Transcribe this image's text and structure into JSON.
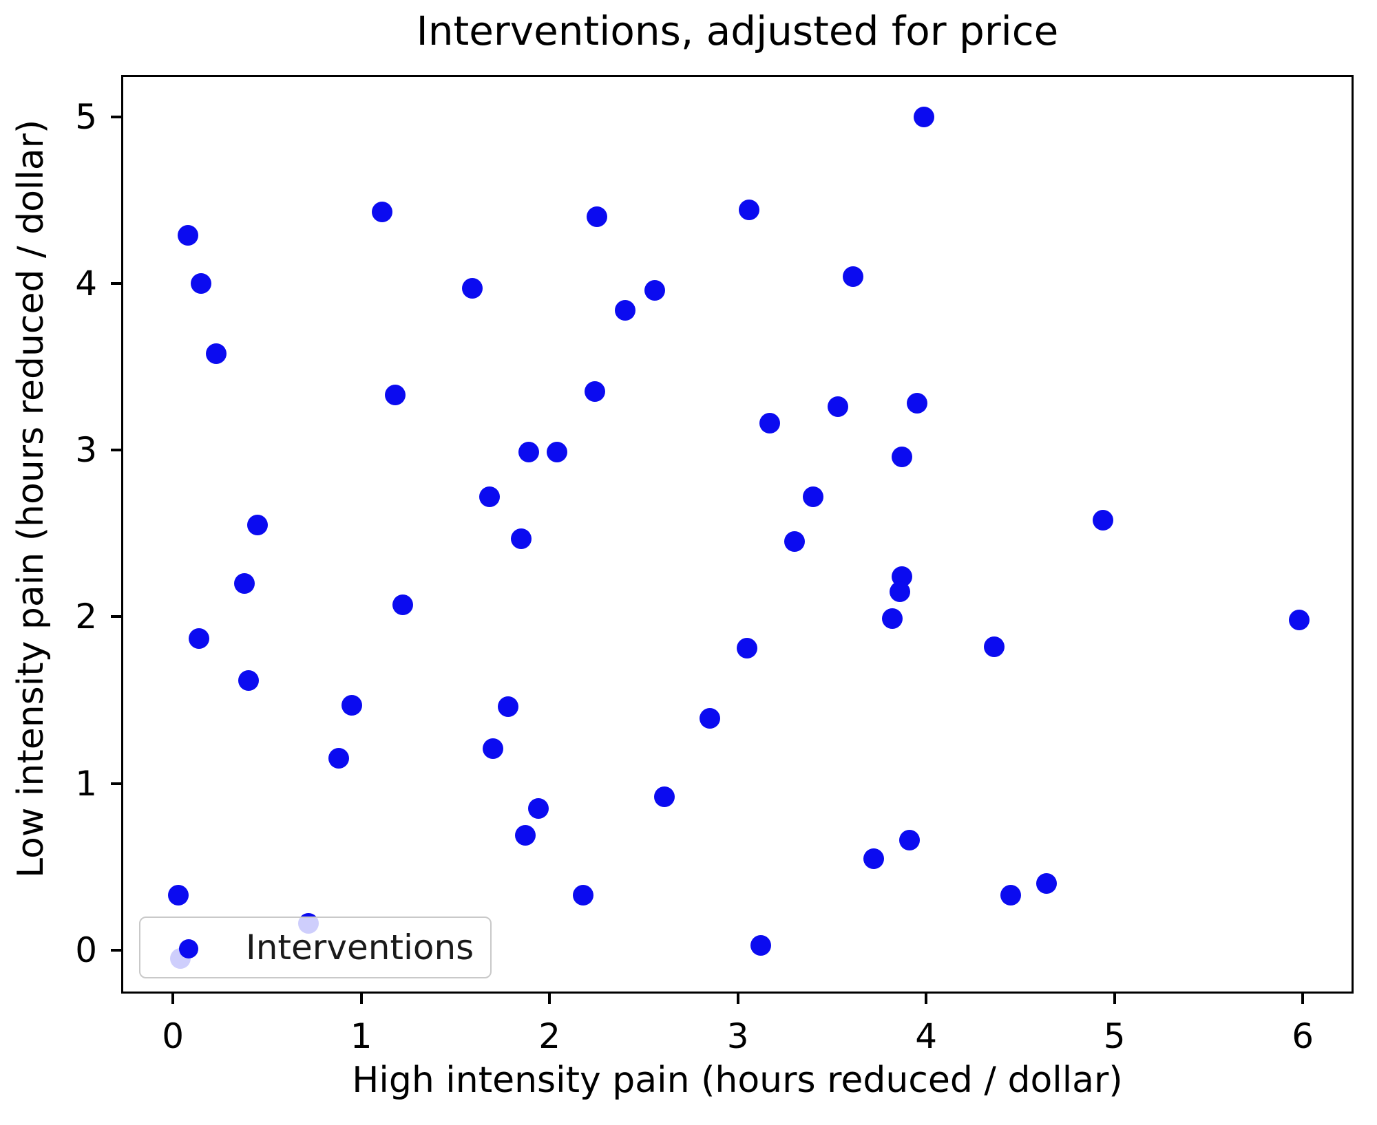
{
  "chart_data": {
    "type": "scatter",
    "title": "Interventions, adjusted for price",
    "xlabel": "High intensity pain (hours reduced / dollar)",
    "ylabel": "Low intensity pain (hours reduced / dollar)",
    "legend_label": "Interventions",
    "legend_position": "lower left",
    "marker_color": "#0b0bf0",
    "marker_diameter_px": 30,
    "grid": false,
    "xlim": [
      -0.275,
      6.27
    ],
    "ylim": [
      -0.26,
      5.25
    ],
    "x_ticks": [
      0,
      1,
      2,
      3,
      4,
      5,
      6
    ],
    "y_ticks": [
      0,
      1,
      2,
      3,
      4,
      5
    ],
    "points": [
      [
        0.08,
        4.29
      ],
      [
        0.15,
        4.0
      ],
      [
        0.23,
        3.58
      ],
      [
        1.11,
        4.43
      ],
      [
        1.18,
        3.33
      ],
      [
        1.59,
        3.97
      ],
      [
        2.25,
        4.4
      ],
      [
        3.06,
        4.44
      ],
      [
        2.56,
        3.96
      ],
      [
        2.4,
        3.84
      ],
      [
        2.24,
        3.35
      ],
      [
        3.99,
        5.0
      ],
      [
        3.61,
        4.04
      ],
      [
        3.17,
        3.16
      ],
      [
        3.53,
        3.26
      ],
      [
        3.95,
        3.28
      ],
      [
        3.87,
        2.96
      ],
      [
        1.89,
        2.99
      ],
      [
        2.04,
        2.99
      ],
      [
        1.68,
        2.72
      ],
      [
        1.85,
        2.47
      ],
      [
        3.4,
        2.72
      ],
      [
        3.3,
        2.45
      ],
      [
        4.94,
        2.58
      ],
      [
        0.45,
        2.55
      ],
      [
        0.38,
        2.2
      ],
      [
        0.14,
        1.87
      ],
      [
        0.4,
        1.62
      ],
      [
        1.22,
        2.07
      ],
      [
        3.87,
        2.24
      ],
      [
        3.86,
        2.15
      ],
      [
        3.82,
        1.99
      ],
      [
        5.98,
        1.98
      ],
      [
        4.36,
        1.82
      ],
      [
        3.05,
        1.81
      ],
      [
        0.95,
        1.47
      ],
      [
        0.88,
        1.15
      ],
      [
        1.78,
        1.46
      ],
      [
        1.7,
        1.21
      ],
      [
        2.85,
        1.39
      ],
      [
        1.94,
        0.85
      ],
      [
        1.87,
        0.69
      ],
      [
        2.61,
        0.92
      ],
      [
        2.18,
        0.33
      ],
      [
        3.12,
        0.03
      ],
      [
        3.72,
        0.55
      ],
      [
        3.91,
        0.66
      ],
      [
        4.45,
        0.33
      ],
      [
        4.64,
        0.4
      ],
      [
        0.03,
        0.33
      ],
      [
        0.04,
        -0.05
      ],
      [
        0.72,
        0.16
      ]
    ]
  }
}
